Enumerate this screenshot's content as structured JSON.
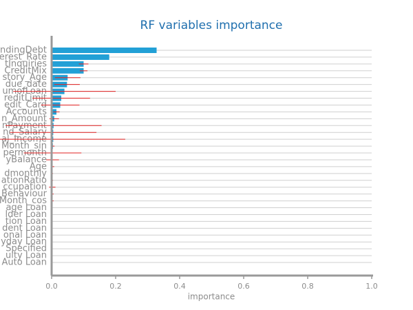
{
  "chart_data": {
    "type": "barh",
    "title": "RF variables importance",
    "xlabel": "importance",
    "categories": [
      "ndingDebt",
      "erest_Rate",
      "tInquiries",
      "CreditMix",
      "story_Age",
      "due_date",
      "umofLoan",
      "reditLimit",
      "edit_Card",
      "Accounts",
      "n_Amount",
      "nPayment",
      "nd_Salary",
      "al_Income",
      "Month_sin",
      "permonth",
      "yBalance",
      "Age",
      "dmonthly",
      "ationRatio",
      "ccupation",
      "Behaviour",
      "Month_cos",
      "age Loan",
      "lder Loan",
      "tion Loan",
      "dent Loan",
      "onal Loan",
      "yday Loan",
      "Specified",
      "ulty Loan",
      "Auto Loan"
    ],
    "values": [
      0.328,
      0.18,
      0.1,
      0.1,
      0.05,
      0.048,
      0.04,
      0.03,
      0.027,
      0.015,
      0.008,
      0.006,
      0.005,
      0.005,
      0.004,
      0.003,
      0.003,
      0.003,
      0.002,
      0.002,
      0.002,
      0.002,
      0.002,
      0.001,
      0.001,
      0.001,
      0.001,
      0.001,
      0.001,
      0.001,
      0.001,
      0.001
    ],
    "errors": [
      0,
      0,
      0.015,
      0.012,
      0.04,
      0.04,
      0.16,
      0.09,
      0.06,
      0.01,
      0.015,
      0.15,
      0.135,
      0.225,
      0.005,
      0.09,
      0.02,
      0.005,
      0.002,
      0.002,
      0.01,
      0.004,
      0.004,
      0.002,
      0.002,
      0.002,
      0.002,
      0.002,
      0.002,
      0.002,
      0.002,
      0.002
    ],
    "color": "#22a0d6",
    "error_color": "#e02020",
    "xlim": [
      0,
      1
    ],
    "xticks": [
      {
        "value": 0,
        "label": "0.0"
      },
      0.2,
      0.4,
      0.6,
      0.8,
      {
        "value": 1,
        "label": "1.0"
      }
    ],
    "grid": true
  }
}
